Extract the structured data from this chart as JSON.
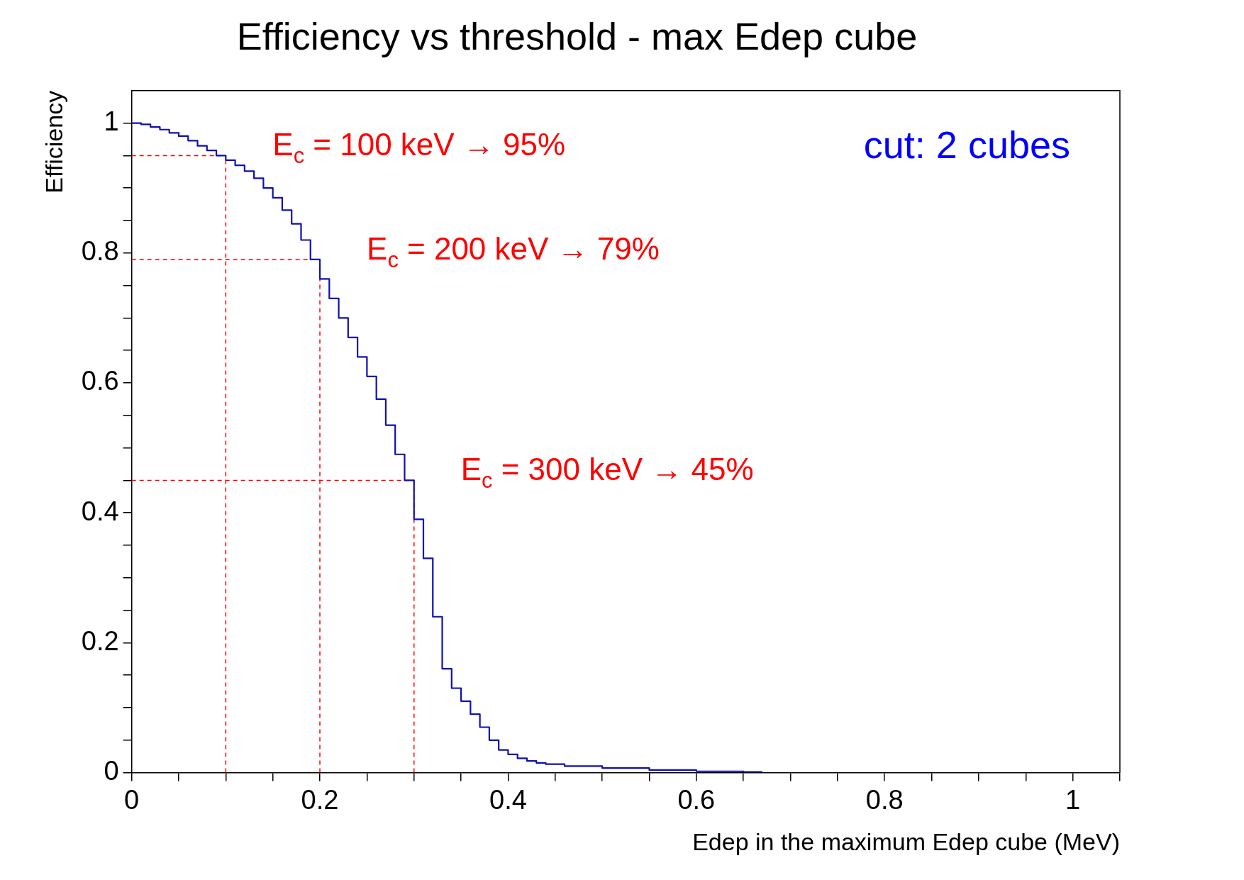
{
  "chart_data": {
    "type": "step",
    "title": "Efficiency vs threshold - max Edep cube",
    "xlabel": "Edep in the maximum Edep cube (MeV)",
    "ylabel": "Efficiency",
    "x": [
      0,
      0.01,
      0.02,
      0.03,
      0.04,
      0.05,
      0.06,
      0.07,
      0.08,
      0.09,
      0.1,
      0.11,
      0.12,
      0.13,
      0.14,
      0.15,
      0.16,
      0.17,
      0.18,
      0.19,
      0.2,
      0.21,
      0.22,
      0.23,
      0.24,
      0.25,
      0.26,
      0.27,
      0.28,
      0.29,
      0.3,
      0.31,
      0.32,
      0.33,
      0.34,
      0.35,
      0.36,
      0.37,
      0.38,
      0.39,
      0.4,
      0.41,
      0.42,
      0.43,
      0.44,
      0.46,
      0.5,
      0.55,
      0.6,
      0.65,
      0.67
    ],
    "series": [
      {
        "color": "#1010b0",
        "values": [
          1.0,
          1.0,
          0.998,
          0.994,
          0.99,
          0.985,
          0.98,
          0.973,
          0.965,
          0.958,
          0.95,
          0.943,
          0.935,
          0.926,
          0.915,
          0.9,
          0.885,
          0.866,
          0.845,
          0.82,
          0.79,
          0.76,
          0.73,
          0.7,
          0.67,
          0.64,
          0.61,
          0.575,
          0.535,
          0.49,
          0.45,
          0.39,
          0.33,
          0.24,
          0.16,
          0.13,
          0.11,
          0.09,
          0.07,
          0.05,
          0.035,
          0.028,
          0.022,
          0.018,
          0.015,
          0.013,
          0.01,
          0.007,
          0.004,
          0.002,
          0.001
        ]
      }
    ],
    "xlim": [
      0,
      1.05
    ],
    "ylim": [
      0,
      1.05
    ],
    "xticks": [
      0,
      {
        "value": 0.05,
        "label": null
      },
      {
        "value": 0.1,
        "label": null
      },
      {
        "value": 0.15,
        "label": null
      },
      0.2,
      {
        "value": 0.25,
        "label": null
      },
      {
        "value": 0.3,
        "label": null
      },
      {
        "value": 0.35,
        "label": null
      },
      0.4,
      {
        "value": 0.45,
        "label": null
      },
      {
        "value": 0.5,
        "label": null
      },
      {
        "value": 0.55,
        "label": null
      },
      0.6,
      {
        "value": 0.65,
        "label": null
      },
      {
        "value": 0.7,
        "label": null
      },
      {
        "value": 0.75,
        "label": null
      },
      0.8,
      {
        "value": 0.85,
        "label": null
      },
      {
        "value": 0.9,
        "label": null
      },
      {
        "value": 0.95,
        "label": null
      },
      1,
      {
        "value": 1.05,
        "label": null
      }
    ],
    "yticks": [
      0,
      {
        "value": 0.05,
        "label": null
      },
      {
        "value": 0.1,
        "label": null
      },
      {
        "value": 0.15,
        "label": null
      },
      0.2,
      {
        "value": 0.25,
        "label": null
      },
      {
        "value": 0.3,
        "label": null
      },
      {
        "value": 0.35,
        "label": null
      },
      0.4,
      {
        "value": 0.45,
        "label": null
      },
      {
        "value": 0.5,
        "label": null
      },
      {
        "value": 0.55,
        "label": null
      },
      0.6,
      {
        "value": 0.65,
        "label": null
      },
      {
        "value": 0.7,
        "label": null
      },
      {
        "value": 0.75,
        "label": null
      },
      0.8,
      {
        "value": 0.85,
        "label": null
      },
      {
        "value": 0.9,
        "label": null
      },
      {
        "value": 0.95,
        "label": null
      },
      1
    ],
    "line_style": "solid",
    "ref_lines": [
      {
        "axis": "y",
        "value": 0.95,
        "color": "#ff0000",
        "line_style": "dashed"
      },
      {
        "axis": "x",
        "value": 0.1,
        "color": "#ff0000",
        "line_style": "dashed"
      },
      {
        "axis": "y",
        "value": 0.79,
        "color": "#ff0000",
        "line_style": "dashed"
      },
      {
        "axis": "x",
        "value": 0.2,
        "color": "#ff0000",
        "line_style": "dashed"
      },
      {
        "axis": "y",
        "value": 0.45,
        "color": "#ff0000",
        "line_style": "dashed"
      },
      {
        "axis": "x",
        "value": 0.3,
        "color": "#ff0000",
        "line_style": "dashed"
      }
    ],
    "annotations": [
      {
        "text": "E$_{c}$ = 100 keV → 95%",
        "x": 0.1,
        "y": 0.95
      },
      {
        "text": "E$_{c}$ = 200 keV → 79%",
        "x": 0.2,
        "y": 0.79
      },
      {
        "text": "E$_{c}$ = 300 keV → 45%",
        "x": 0.3,
        "y": 0.45
      },
      "cut: 2 cubes"
    ]
  }
}
